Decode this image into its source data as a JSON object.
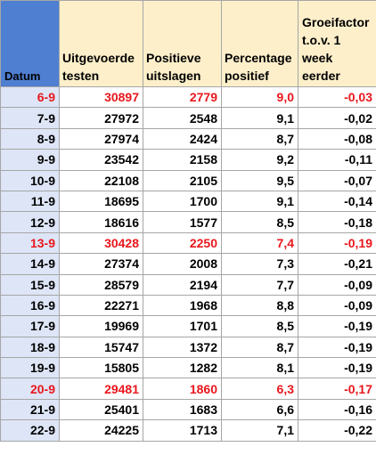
{
  "header": {
    "datum": "Datum",
    "tests": "Uitgevoerde testen",
    "positive": "Positieve uitslagen",
    "percentage": "Percentage positief",
    "growth": "Groeifactor t.o.v. 1 week eerder"
  },
  "highlight_color": "#e8171d",
  "rows": [
    {
      "date": "6-9",
      "tests": "30897",
      "positive": "2779",
      "pct": "9,0",
      "growth": "-0,03",
      "highlight": true
    },
    {
      "date": "7-9",
      "tests": "27972",
      "positive": "2548",
      "pct": "9,1",
      "growth": "-0,02",
      "highlight": false
    },
    {
      "date": "8-9",
      "tests": "27974",
      "positive": "2424",
      "pct": "8,7",
      "growth": "-0,08",
      "highlight": false
    },
    {
      "date": "9-9",
      "tests": "23542",
      "positive": "2158",
      "pct": "9,2",
      "growth": "-0,11",
      "highlight": false
    },
    {
      "date": "10-9",
      "tests": "22108",
      "positive": "2105",
      "pct": "9,5",
      "growth": "-0,07",
      "highlight": false
    },
    {
      "date": "11-9",
      "tests": "18695",
      "positive": "1700",
      "pct": "9,1",
      "growth": "-0,14",
      "highlight": false
    },
    {
      "date": "12-9",
      "tests": "18616",
      "positive": "1577",
      "pct": "8,5",
      "growth": "-0,18",
      "highlight": false
    },
    {
      "date": "13-9",
      "tests": "30428",
      "positive": "2250",
      "pct": "7,4",
      "growth": "-0,19",
      "highlight": true
    },
    {
      "date": "14-9",
      "tests": "27374",
      "positive": "2008",
      "pct": "7,3",
      "growth": "-0,21",
      "highlight": false
    },
    {
      "date": "15-9",
      "tests": "28579",
      "positive": "2194",
      "pct": "7,7",
      "growth": "-0,09",
      "highlight": false
    },
    {
      "date": "16-9",
      "tests": "22271",
      "positive": "1968",
      "pct": "8,8",
      "growth": "-0,09",
      "highlight": false
    },
    {
      "date": "17-9",
      "tests": "19969",
      "positive": "1701",
      "pct": "8,5",
      "growth": "-0,19",
      "highlight": false
    },
    {
      "date": "18-9",
      "tests": "15747",
      "positive": "1372",
      "pct": "8,7",
      "growth": "-0,19",
      "highlight": false
    },
    {
      "date": "19-9",
      "tests": "15805",
      "positive": "1282",
      "pct": "8,1",
      "growth": "-0,19",
      "highlight": false
    },
    {
      "date": "20-9",
      "tests": "29481",
      "positive": "1860",
      "pct": "6,3",
      "growth": "-0,17",
      "highlight": true
    },
    {
      "date": "21-9",
      "tests": "25401",
      "positive": "1683",
      "pct": "6,6",
      "growth": "-0,16",
      "highlight": false
    },
    {
      "date": "22-9",
      "tests": "24225",
      "positive": "1713",
      "pct": "7,1",
      "growth": "-0,22",
      "highlight": false
    }
  ]
}
